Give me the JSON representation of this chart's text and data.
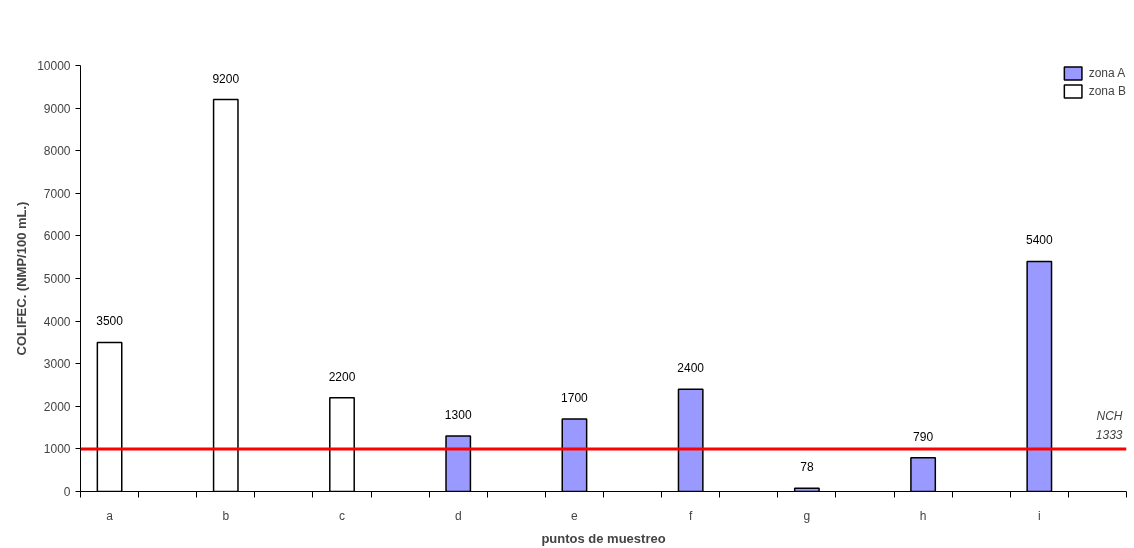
{
  "chart_data": {
    "type": "bar",
    "xlabel": "puntos de muestreo",
    "ylabel": "COLIFEC. (NMP/100 mL.)",
    "categories": [
      "a",
      null,
      "b",
      null,
      "c",
      null,
      "d",
      null,
      "e",
      null,
      "f",
      null,
      "g",
      null,
      "h",
      null,
      "i",
      null
    ],
    "series": [
      {
        "name": "zona A",
        "color": "#9999ff",
        "values": [
          null,
          null,
          null,
          null,
          null,
          null,
          1300,
          null,
          1700,
          null,
          2400,
          null,
          78,
          null,
          790,
          null,
          5400,
          null
        ]
      },
      {
        "name": "zona B",
        "color": "#ffffff",
        "values": [
          3500,
          null,
          9200,
          null,
          2200,
          null,
          null,
          null,
          null,
          null,
          null,
          null,
          null,
          null,
          null,
          null,
          null,
          null
        ]
      }
    ],
    "ylim": [
      0,
      10000
    ],
    "yticks": [
      0,
      1000,
      2000,
      3000,
      4000,
      5000,
      6000,
      7000,
      8000,
      9000,
      10000
    ],
    "ref_lines": [
      {
        "axis": "y",
        "value": 1000,
        "label": "NCH\n1333",
        "color": "#ff0000"
      }
    ],
    "data_labels": true,
    "grid": false,
    "legend": "top right"
  }
}
